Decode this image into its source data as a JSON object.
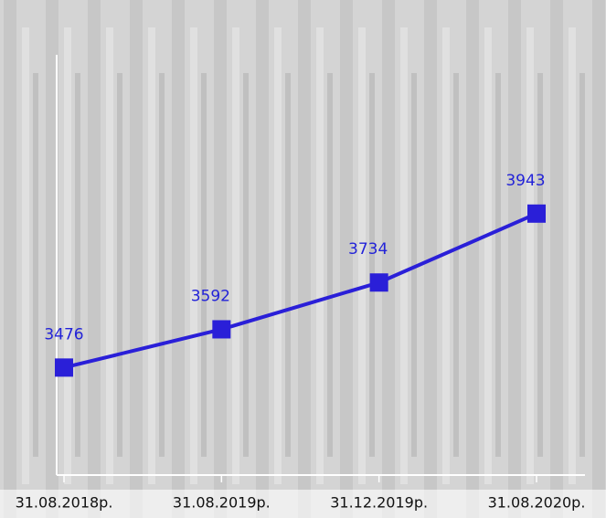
{
  "chart_data": {
    "type": "line",
    "categories": [
      "31.08.2018р.",
      "31.08.2019р.",
      "31.12.2019р.",
      "31.08.2020р."
    ],
    "series": [
      {
        "name": "",
        "color": "#2a1fd8",
        "values": [
          3476,
          3592,
          3734,
          3943
        ]
      }
    ],
    "ylim": [
      3150,
      4480
    ]
  }
}
